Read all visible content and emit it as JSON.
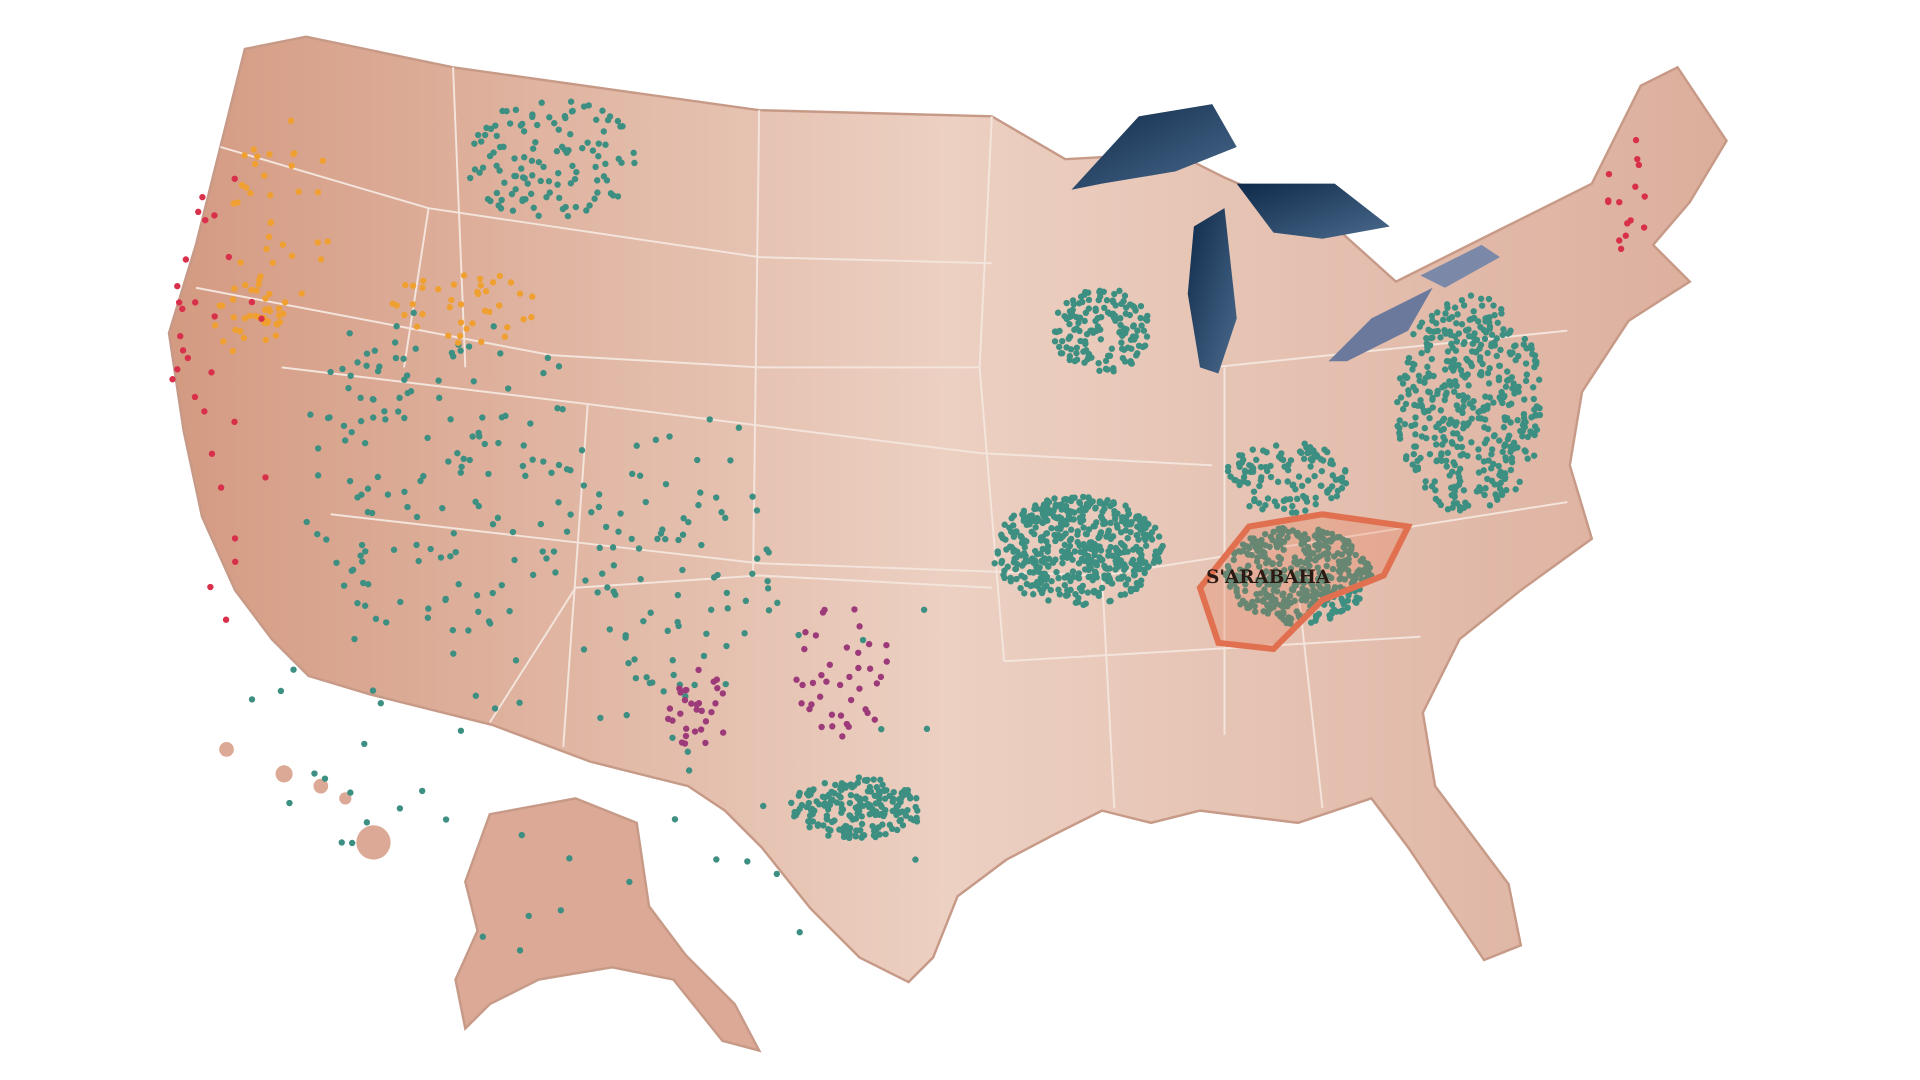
{
  "map": {
    "label": "S'ARABAHA"
  }
}
